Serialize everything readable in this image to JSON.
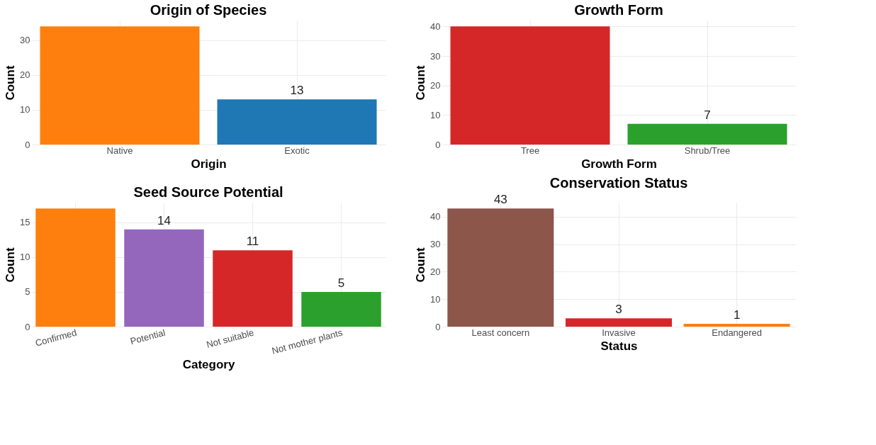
{
  "chart_data": [
    {
      "type": "bar",
      "title": "Origin of Species",
      "xlabel": "Origin",
      "ylabel": "Count",
      "categories": [
        "Native",
        "Exotic"
      ],
      "values": [
        34,
        13
      ],
      "colors": [
        "#ff7f0e",
        "#1f77b4"
      ],
      "value_labels": [
        null,
        "13"
      ],
      "ylim": [
        0,
        35.7
      ],
      "yticks": [
        0,
        10,
        20,
        30
      ],
      "grid": true
    },
    {
      "type": "bar",
      "title": "Growth Form",
      "xlabel": "Growth Form",
      "ylabel": "Count",
      "categories": [
        "Tree",
        "Shrub/Tree"
      ],
      "values": [
        40,
        7
      ],
      "colors": [
        "#d62728",
        "#2ca02c"
      ],
      "value_labels": [
        null,
        "7"
      ],
      "ylim": [
        0,
        42
      ],
      "yticks": [
        0,
        10,
        20,
        30,
        40
      ],
      "grid": true
    },
    {
      "type": "bar",
      "title": "Seed Source Potential",
      "xlabel": "Category",
      "ylabel": "Count",
      "categories": [
        "Confirmed",
        "Potential",
        "Not suitable",
        "Not mother plants"
      ],
      "values": [
        17,
        14,
        11,
        5
      ],
      "colors": [
        "#ff7f0e",
        "#9467bd",
        "#d62728",
        "#2ca02c"
      ],
      "value_labels": [
        null,
        "14",
        "11",
        "5"
      ],
      "ylim": [
        0,
        17.85
      ],
      "yticks": [
        0,
        5,
        10,
        15
      ],
      "grid": true
    },
    {
      "type": "bar",
      "title": "Conservation Status",
      "xlabel": "Status",
      "ylabel": "Count",
      "categories": [
        "Least concern",
        "Invasive",
        "Endangered"
      ],
      "values": [
        43,
        3,
        1
      ],
      "colors": [
        "#8c564b",
        "#d62728",
        "#ff7f0e"
      ],
      "value_labels": [
        "43",
        "3",
        "1"
      ],
      "ylim": [
        0,
        45.15
      ],
      "yticks": [
        0,
        10,
        20,
        30,
        40
      ],
      "grid": true
    }
  ]
}
